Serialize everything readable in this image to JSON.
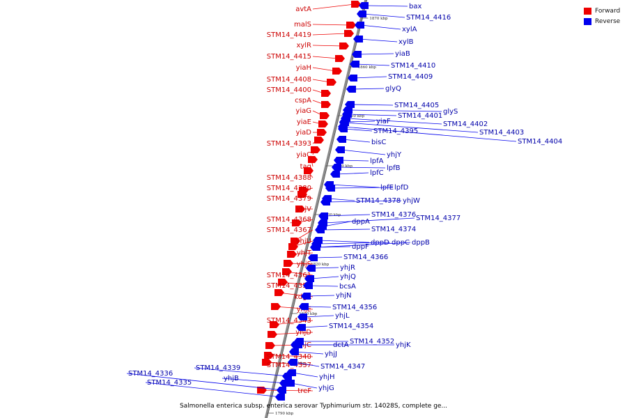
{
  "title": "Salmonella enterica subsp. enterica serovar Typhimurium str. 14028S, complete ge...",
  "colors": {
    "forward": "#ee0000",
    "reverse": "#0000ee",
    "backbone": "#8a8a8a",
    "forward_label": "#cc0000",
    "reverse_label": "#0000aa"
  },
  "legend": [
    {
      "label": "Forward",
      "color": "#ee0000"
    },
    {
      "label": "Reverse",
      "color": "#0000ee"
    }
  ],
  "ticks": [
    "1870 kbp",
    "1860 kbp",
    "1850 kbp",
    "1840 kbp",
    "1830 kbp",
    "1820 kbp",
    "1810 kbp",
    "1800 kbp",
    "1790 kbp"
  ],
  "forward_genes": [
    "avtA",
    "malS",
    "STM14_4419",
    "xylR",
    "STM14_4415",
    "yiaH",
    "STM14_4408",
    "STM14_4400",
    "cspA",
    "yiaG",
    "yiaE",
    "yiaD",
    "STM14_4393",
    "yiaC",
    "tag",
    "STM14_4388",
    "STM14_4380",
    "STM14_4379",
    "yhjV",
    "STM14_4368",
    "STM14_4367",
    "yhjU",
    "yhjT",
    "yhjS",
    "STM14_4361",
    "STM14_4350",
    "kdgK",
    "yhjE",
    "STM14_4343",
    "yhjD",
    "yhjC",
    "STM14_4340",
    "STM14_4337",
    "treF"
  ],
  "reverse_genes": [
    "bax",
    "STM14_4416",
    "xylA",
    "xylB",
    "yiaB",
    "STM14_4410",
    "STM14_4409",
    "glyQ",
    "STM14_4405",
    "glyS",
    "STM14_4401",
    "STM14_4402",
    "STM14_4403",
    "STM14_4404",
    "yiaF",
    "STM14_4395",
    "bisC",
    "yhjY",
    "lpfA",
    "lpfB",
    "lpfC",
    "lpfE",
    "lpfD",
    "STM14_4378",
    "yhjW",
    "STM14_4376",
    "STM14_4377",
    "dppA",
    "STM14_4374",
    "dppD",
    "dppC",
    "dppB",
    "dppF",
    "STM14_4366",
    "yhjR",
    "yhjQ",
    "bcsA",
    "yhjN",
    "STM14_4356",
    "yhjL",
    "STM14_4354",
    "STM14_4352",
    "yhjK",
    "dctA",
    "yhjJ",
    "STM14_4347",
    "yhjH",
    "yhjG",
    "STM14_4339",
    "yhjB",
    "STM14_4336",
    "STM14_4335"
  ]
}
